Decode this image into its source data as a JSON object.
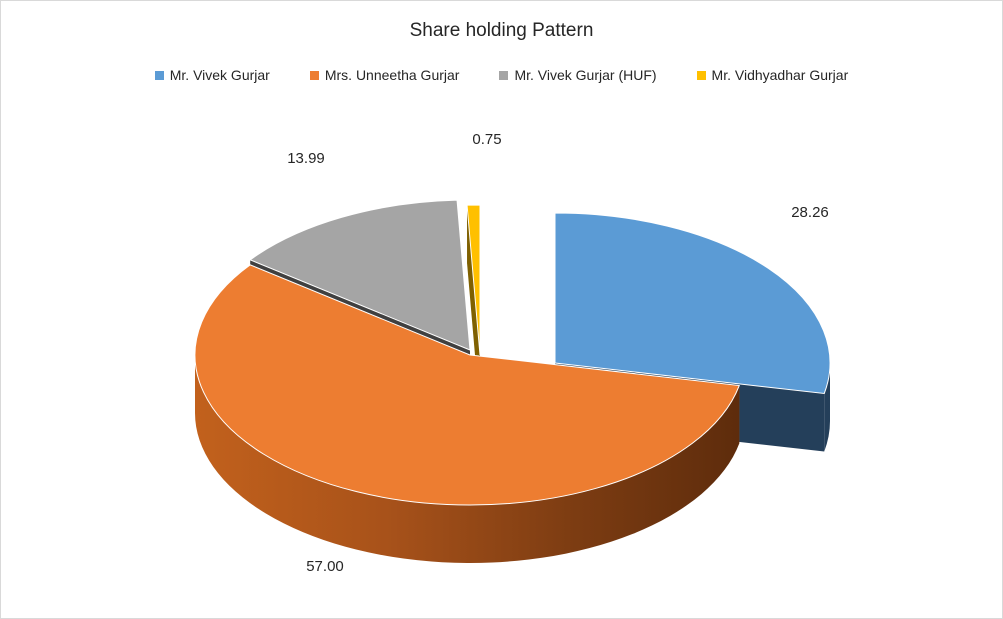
{
  "chart_data": {
    "type": "pie",
    "title": "Share holding Pattern",
    "categories": [
      "Mr. Vivek Gurjar",
      "Mrs. Unneetha Gurjar",
      "Mr. Vivek Gurjar (HUF)",
      "Mr. Vidhyadhar Gurjar"
    ],
    "values": [
      28.26,
      57.0,
      13.99,
      0.75
    ],
    "data_labels": [
      "28.26",
      "57.00",
      "13.99",
      "0.75"
    ],
    "colors": [
      "#5b9bd5",
      "#ed7d31",
      "#a5a5a5",
      "#ffc000"
    ],
    "style": "3d-exploded",
    "legend_position": "top"
  }
}
